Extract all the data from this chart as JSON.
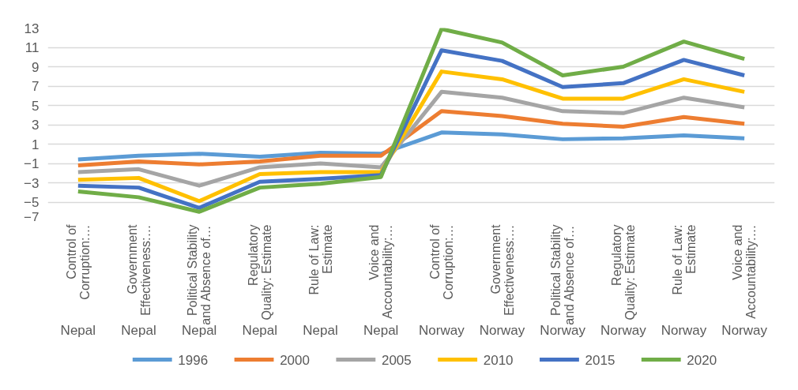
{
  "chart_data": {
    "type": "line",
    "categories": [
      "Control of Corruption:…",
      "Government Effectiveness:…",
      "Political Stability and Absence of…",
      "Regulatory Quality: Estimate",
      "Rule of Law: Estimate",
      "Voice and Accountability:…",
      "Control of Corruption:…",
      "Government Effectiveness:…",
      "Political Stability and Absence of…",
      "Regulatory Quality: Estimate",
      "Rule of Law: Estimate",
      "Voice and Accountability:…"
    ],
    "annotations": [
      "Nepal",
      "Nepal",
      "Nepal",
      "Nepal",
      "Nepal",
      "Nepal",
      "Norway",
      "Norway",
      "Norway",
      "Norway",
      "Norway",
      "Norway"
    ],
    "series": [
      {
        "name": "1996",
        "color": "#5b9bd5",
        "values": [
          -0.6,
          -0.2,
          0.0,
          -0.3,
          0.1,
          0.0,
          2.2,
          2.0,
          1.5,
          1.6,
          1.9,
          1.6
        ]
      },
      {
        "name": "2000",
        "color": "#ed7d31",
        "values": [
          -1.2,
          -0.8,
          -1.1,
          -0.8,
          -0.2,
          -0.2,
          4.4,
          3.9,
          3.1,
          2.8,
          3.8,
          3.1
        ]
      },
      {
        "name": "2005",
        "color": "#a5a5a5",
        "values": [
          -1.9,
          -1.6,
          -3.3,
          -1.4,
          -1.0,
          -1.4,
          6.4,
          5.8,
          4.4,
          4.2,
          5.8,
          4.8
        ]
      },
      {
        "name": "2010",
        "color": "#ffc000",
        "values": [
          -2.7,
          -2.5,
          -4.9,
          -2.1,
          -1.9,
          -1.9,
          8.5,
          7.7,
          5.7,
          5.7,
          7.7,
          6.4
        ]
      },
      {
        "name": "2015",
        "color": "#4472c4",
        "values": [
          -3.3,
          -3.5,
          -5.6,
          -2.9,
          -2.6,
          -2.2,
          10.7,
          9.6,
          6.9,
          7.3,
          9.7,
          8.1
        ]
      },
      {
        "name": "2020",
        "color": "#70ad47",
        "values": [
          -3.9,
          -4.5,
          -6.0,
          -3.5,
          -3.1,
          -2.4,
          12.9,
          11.5,
          8.1,
          9.0,
          11.6,
          9.8
        ]
      }
    ],
    "ylim": [
      -7,
      13
    ],
    "yticks": [
      -7,
      -5,
      -3,
      -1,
      1,
      3,
      5,
      7,
      9,
      11,
      13
    ],
    "grid": "y",
    "legend": "bottom",
    "marker": "none",
    "line_style": "solid"
  }
}
